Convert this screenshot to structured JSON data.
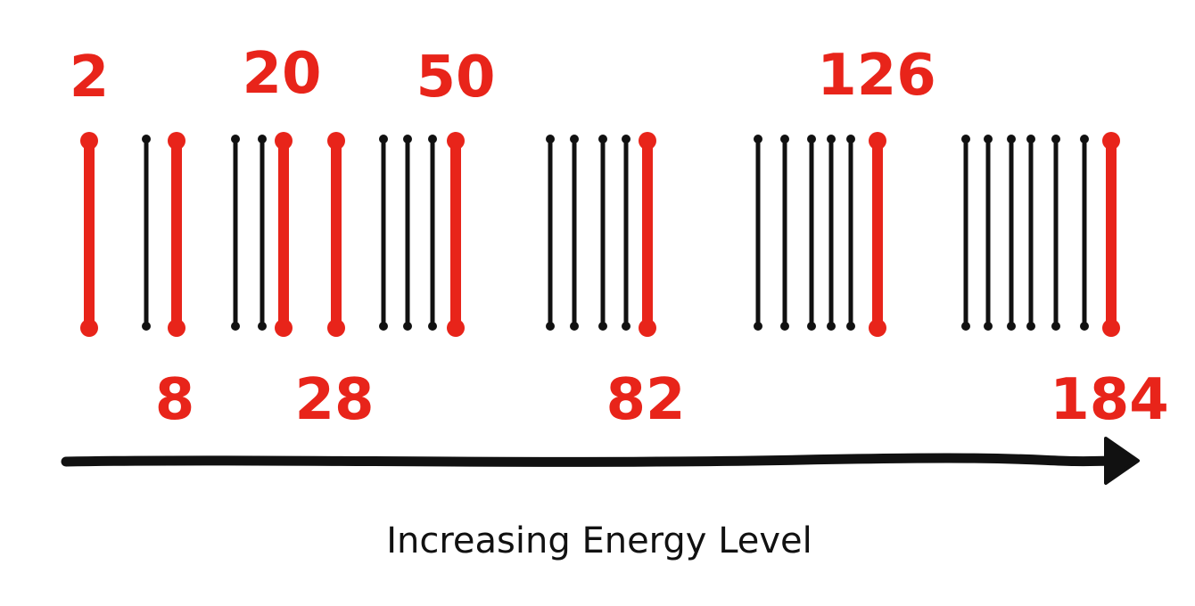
{
  "colors": {
    "magic": "#e8241a",
    "level": "#111111",
    "arrow": "#111111",
    "background": "#ffffff"
  },
  "diagram": {
    "magic_numbers_top": [
      "2",
      "20",
      "50",
      "126"
    ],
    "magic_numbers_bottom": [
      "8",
      "28",
      "82",
      "184"
    ],
    "energy_levels": [
      {
        "magic": true
      },
      {
        "magic": false
      },
      {
        "magic": true
      },
      {
        "magic": false
      },
      {
        "magic": false
      },
      {
        "magic": true
      },
      {
        "magic": true
      },
      {
        "magic": false
      },
      {
        "magic": false
      },
      {
        "magic": false
      },
      {
        "magic": true
      },
      {
        "magic": false
      },
      {
        "magic": false
      },
      {
        "magic": false
      },
      {
        "magic": false
      },
      {
        "magic": true
      },
      {
        "magic": false
      },
      {
        "magic": false
      },
      {
        "magic": false
      },
      {
        "magic": false
      },
      {
        "magic": false
      },
      {
        "magic": true
      },
      {
        "magic": false
      },
      {
        "magic": false
      },
      {
        "magic": false
      },
      {
        "magic": false
      },
      {
        "magic": false
      },
      {
        "magic": false
      },
      {
        "magic": true
      }
    ],
    "axis_caption": "Increasing Energy Level"
  }
}
